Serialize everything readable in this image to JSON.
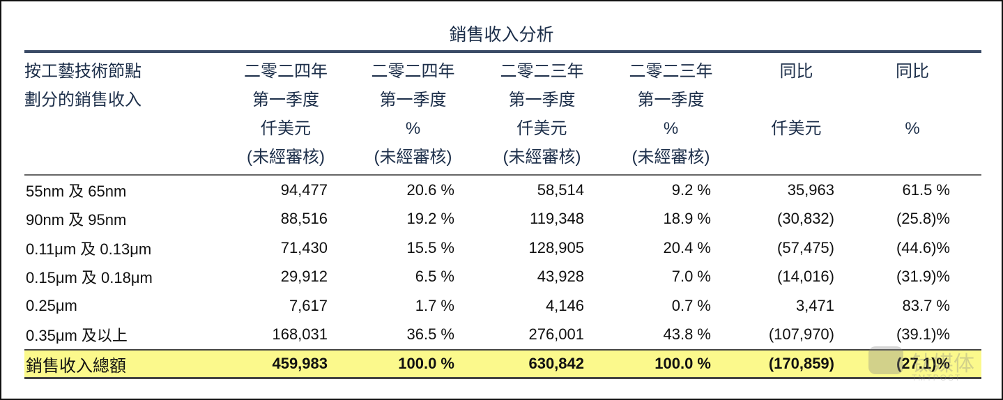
{
  "title": "銷售收入分析",
  "header": {
    "row_label": [
      "按工藝技術節點",
      "劃分的銷售收入"
    ],
    "columns": [
      [
        "二零二四年",
        "第一季度",
        "仟美元",
        "(未經審核)"
      ],
      [
        "二零二四年",
        "第一季度",
        "%",
        "(未經審核)"
      ],
      [
        "二零二三年",
        "第一季度",
        "仟美元",
        "(未經審核)"
      ],
      [
        "二零二三年",
        "第一季度",
        "%",
        "(未經審核)"
      ],
      [
        "同比",
        "",
        "仟美元",
        ""
      ],
      [
        "同比",
        "",
        "%",
        ""
      ]
    ]
  },
  "rows": [
    [
      "55nm 及 65nm",
      "94,477",
      "20.6 %",
      "58,514",
      "9.2 %",
      "35,963",
      "61.5 %"
    ],
    [
      "90nm 及 95nm",
      "88,516",
      "19.2 %",
      "119,348",
      "18.9 %",
      "(30,832)",
      "(25.8)%"
    ],
    [
      "0.11μm 及 0.13μm",
      "71,430",
      "15.5 %",
      "128,905",
      "20.4 %",
      "(57,475)",
      "(44.6)%"
    ],
    [
      "0.15μm 及 0.18μm",
      "29,912",
      "6.5 %",
      "43,928",
      "7.0 %",
      "(14,016)",
      "(31.9)%"
    ],
    [
      "0.25μm",
      "7,617",
      "1.7 %",
      "4,146",
      "0.7 %",
      "3,471",
      "83.7 %"
    ],
    [
      "0.35μm 及以上",
      "168,031",
      "36.5 %",
      "276,001",
      "43.8 %",
      "(107,970)",
      "(39.1)%"
    ]
  ],
  "total": [
    "銷售收入總額",
    "459,983",
    "100.0 %",
    "630,842",
    "100.0 %",
    "(170,859)",
    "(27.1)%"
  ],
  "watermark": {
    "cn": "钛媒体",
    "en": "TMTPOST"
  },
  "colors": {
    "header_text": "#1d2f4a",
    "total_highlight": "#fbf98c"
  }
}
